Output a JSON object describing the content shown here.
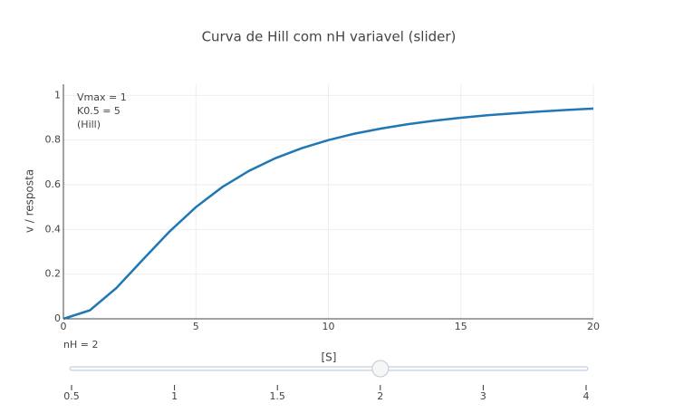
{
  "chart_data": {
    "type": "line",
    "title": "Curva de Hill com nH variavel (slider)",
    "x_label": "[S]",
    "y_label": "v / resposta",
    "x": [
      0,
      1,
      2,
      3,
      4,
      5,
      6,
      7,
      8,
      9,
      10,
      11,
      12,
      13,
      14,
      15,
      16,
      17,
      18,
      19,
      20
    ],
    "series": [
      {
        "name": "Hill",
        "color": "#1f77b4",
        "values": [
          0,
          0.038,
          0.138,
          0.265,
          0.39,
          0.5,
          0.59,
          0.662,
          0.719,
          0.764,
          0.8,
          0.829,
          0.852,
          0.871,
          0.887,
          0.9,
          0.911,
          0.92,
          0.928,
          0.935,
          0.941
        ]
      }
    ],
    "xlim": [
      0,
      20
    ],
    "xticks": [
      0,
      5,
      10,
      15,
      20
    ],
    "ylim": [
      0,
      1.05
    ],
    "yticks": [
      0,
      0.2,
      0.4,
      0.6,
      0.8,
      1
    ],
    "grid": true,
    "annotation": [
      "Vmax = 1",
      "K0.5 = 5",
      "(Hill)"
    ],
    "slider": {
      "current_label": "nH = 2",
      "steps": [
        0.5,
        1,
        1.5,
        2,
        3,
        4
      ],
      "active": 3
    }
  }
}
